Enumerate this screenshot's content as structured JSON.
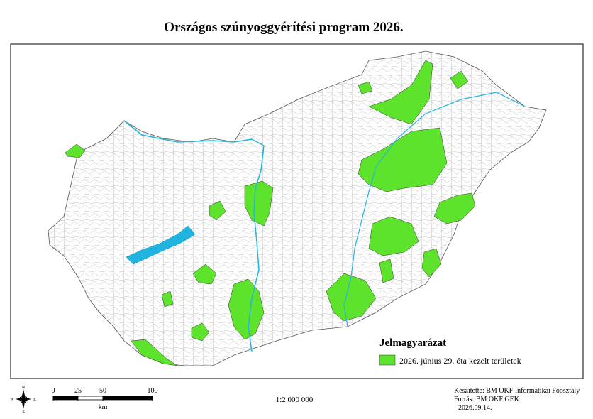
{
  "title": "Országos szúnyoggyérítési program 2026.",
  "legend": {
    "title": "Jelmagyarázat",
    "entries": [
      {
        "label": "2026. június 29. óta kezelt területek",
        "color": "#5ee32c"
      }
    ]
  },
  "scale_bar": {
    "ticks": [
      0,
      25,
      50,
      100
    ],
    "unit": "km",
    "ratio": "1:2 000 000"
  },
  "compass": {
    "n": "N",
    "e": "E",
    "s": "S",
    "w": "W"
  },
  "credits": [
    "Készítette: BM OKF Informatikai Főosztály",
    "Forrás: BM OKF GEK",
    "2026.09.14."
  ]
}
